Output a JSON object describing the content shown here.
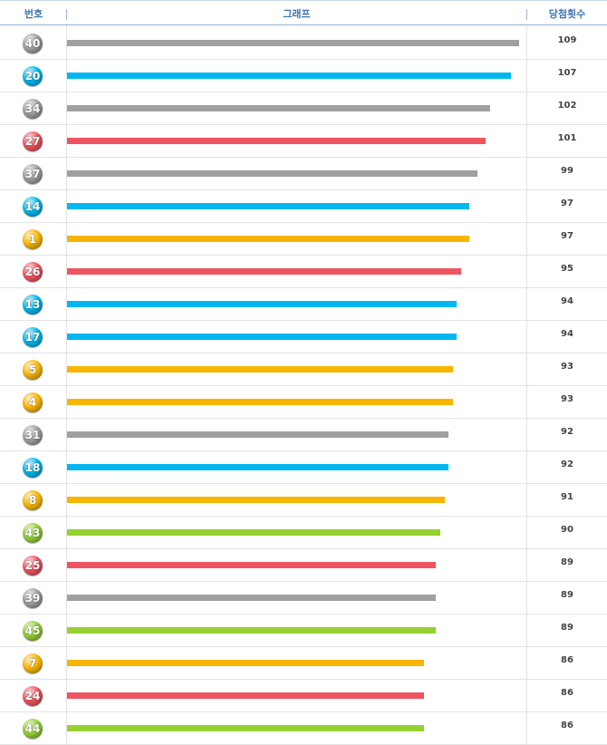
{
  "header": {
    "number": "번호",
    "graph": "그래프",
    "count": "당첨횟수"
  },
  "colors": {
    "yellow": "#f8b500",
    "blue": "#00b8ef",
    "red": "#ef5560",
    "gray": "#a0a0a0",
    "green": "#96d033"
  },
  "chart_data": {
    "type": "bar",
    "orientation": "horizontal",
    "categories": [
      "40",
      "20",
      "34",
      "27",
      "37",
      "14",
      "1",
      "26",
      "13",
      "17",
      "5",
      "4",
      "31",
      "18",
      "8",
      "43",
      "25",
      "39",
      "45",
      "7",
      "24",
      "44"
    ],
    "values": [
      109,
      107,
      102,
      101,
      99,
      97,
      97,
      95,
      94,
      94,
      93,
      93,
      92,
      92,
      91,
      90,
      89,
      89,
      89,
      86,
      86,
      86
    ],
    "bar_colors": [
      "gray",
      "blue",
      "gray",
      "red",
      "gray",
      "blue",
      "yellow",
      "red",
      "blue",
      "blue",
      "yellow",
      "yellow",
      "gray",
      "blue",
      "yellow",
      "green",
      "red",
      "gray",
      "green",
      "yellow",
      "red",
      "green"
    ],
    "xlabel": "그래프",
    "ylabel": "번호",
    "value_label": "당첨횟수"
  }
}
